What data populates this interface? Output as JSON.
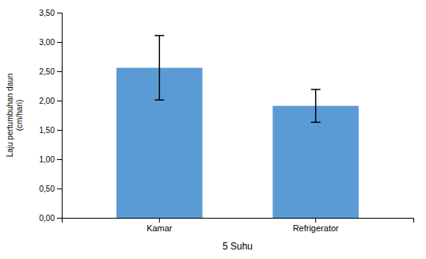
{
  "chart_data": {
    "type": "bar",
    "categories": [
      "Kamar",
      "Refrigerator"
    ],
    "values": [
      2.56,
      1.91
    ],
    "errors": [
      0.55,
      0.28
    ],
    "color": "#5B9BD5",
    "xlabel": "5 Suhu",
    "ylabel": "Laju pertumbuhan daun\n(cm/hari)",
    "ylim": [
      0,
      3.5
    ],
    "yticks": [
      {
        "value": 0.0,
        "label": "0,00"
      },
      {
        "value": 0.5,
        "label": "0,50"
      },
      {
        "value": 1.0,
        "label": "1,00"
      },
      {
        "value": 1.5,
        "label": "1,50"
      },
      {
        "value": 2.0,
        "label": "2,00"
      },
      {
        "value": 2.5,
        "label": "2,50"
      },
      {
        "value": 3.0,
        "label": "3,00"
      },
      {
        "value": 3.5,
        "label": "3,50"
      }
    ],
    "grid": false
  }
}
